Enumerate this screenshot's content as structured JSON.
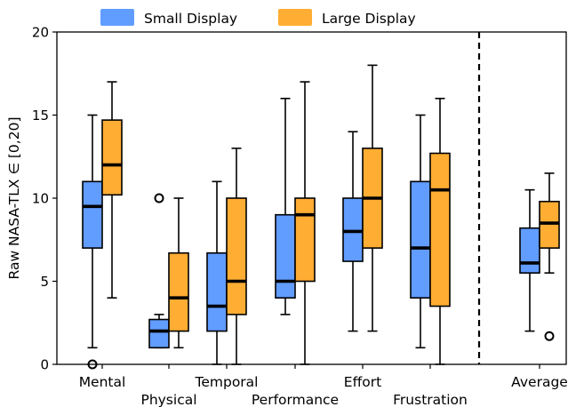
{
  "chart_data": {
    "type": "box",
    "ylabel": "Raw NASA-TLX ∈ [0,20]",
    "ylim": [
      0,
      20
    ],
    "yticks": [
      "0",
      "5",
      "10",
      "15",
      "20"
    ],
    "grid": false,
    "legend_position": "top-center",
    "categories": [
      "Mental",
      "Physical",
      "Temporal",
      "Performance",
      "Effort",
      "Frustration",
      "Average"
    ],
    "series": [
      {
        "name": "Small Display",
        "color": "#619cff",
        "boxes": [
          {
            "whislo": 1,
            "q1": 7,
            "med": 9.5,
            "q3": 11,
            "whishi": 15,
            "fliers": [
              0
            ]
          },
          {
            "whislo": 1,
            "q1": 1,
            "med": 2,
            "q3": 2.7,
            "whishi": 3,
            "fliers": [
              10
            ]
          },
          {
            "whislo": 0,
            "q1": 2,
            "med": 3.5,
            "q3": 6.7,
            "whishi": 11,
            "fliers": []
          },
          {
            "whislo": 3,
            "q1": 4,
            "med": 5,
            "q3": 9,
            "whishi": 16,
            "fliers": []
          },
          {
            "whislo": 2,
            "q1": 6.2,
            "med": 8,
            "q3": 10,
            "whishi": 14,
            "fliers": []
          },
          {
            "whislo": 1,
            "q1": 4,
            "med": 7,
            "q3": 11,
            "whishi": 15,
            "fliers": []
          },
          {
            "whislo": 2,
            "q1": 5.5,
            "med": 6.1,
            "q3": 8.2,
            "whishi": 10.5,
            "fliers": []
          }
        ]
      },
      {
        "name": "Large Display",
        "color": "#ffad33",
        "boxes": [
          {
            "whislo": 4,
            "q1": 10.2,
            "med": 12,
            "q3": 14.7,
            "whishi": 17,
            "fliers": []
          },
          {
            "whislo": 1,
            "q1": 2,
            "med": 4,
            "q3": 6.7,
            "whishi": 10,
            "fliers": []
          },
          {
            "whislo": 0,
            "q1": 3,
            "med": 5,
            "q3": 10,
            "whishi": 13,
            "fliers": []
          },
          {
            "whislo": 0,
            "q1": 5,
            "med": 9,
            "q3": 10,
            "whishi": 17,
            "fliers": []
          },
          {
            "whislo": 2,
            "q1": 7,
            "med": 10,
            "q3": 13,
            "whishi": 18,
            "fliers": []
          },
          {
            "whislo": 0,
            "q1": 3.5,
            "med": 10.5,
            "q3": 12.7,
            "whishi": 16,
            "fliers": []
          },
          {
            "whislo": 5.5,
            "q1": 7,
            "med": 8.5,
            "q3": 9.8,
            "whishi": 11.5,
            "fliers": [
              1.7
            ]
          }
        ]
      }
    ]
  }
}
